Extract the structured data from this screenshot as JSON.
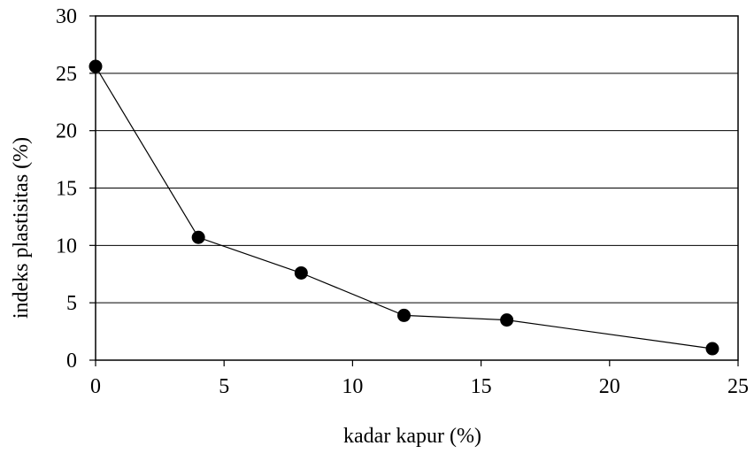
{
  "chart_data": {
    "type": "line",
    "title": "",
    "xlabel": "kadar kapur (%)",
    "ylabel": "indeks plastisitas (%)",
    "x": [
      0,
      4,
      8,
      12,
      16,
      24
    ],
    "series": [
      {
        "values": [
          25.6,
          10.7,
          7.6,
          3.9,
          3.5,
          1.0
        ]
      }
    ],
    "xlim": [
      0,
      25
    ],
    "ylim": [
      0,
      30
    ],
    "xticks": [
      0,
      5,
      10,
      15,
      20,
      25
    ],
    "yticks": [
      0,
      5,
      10,
      15,
      20,
      25,
      30
    ],
    "xtick_labels": [
      "0",
      "5",
      "10",
      "15",
      "20",
      "25"
    ],
    "ytick_labels": [
      "0",
      "5",
      "10",
      "15",
      "20",
      "25",
      "30"
    ],
    "grid": "horizontal",
    "legend": "none",
    "colors": {
      "line": "#000000",
      "marker": "#000000",
      "grid": "#000000"
    }
  }
}
